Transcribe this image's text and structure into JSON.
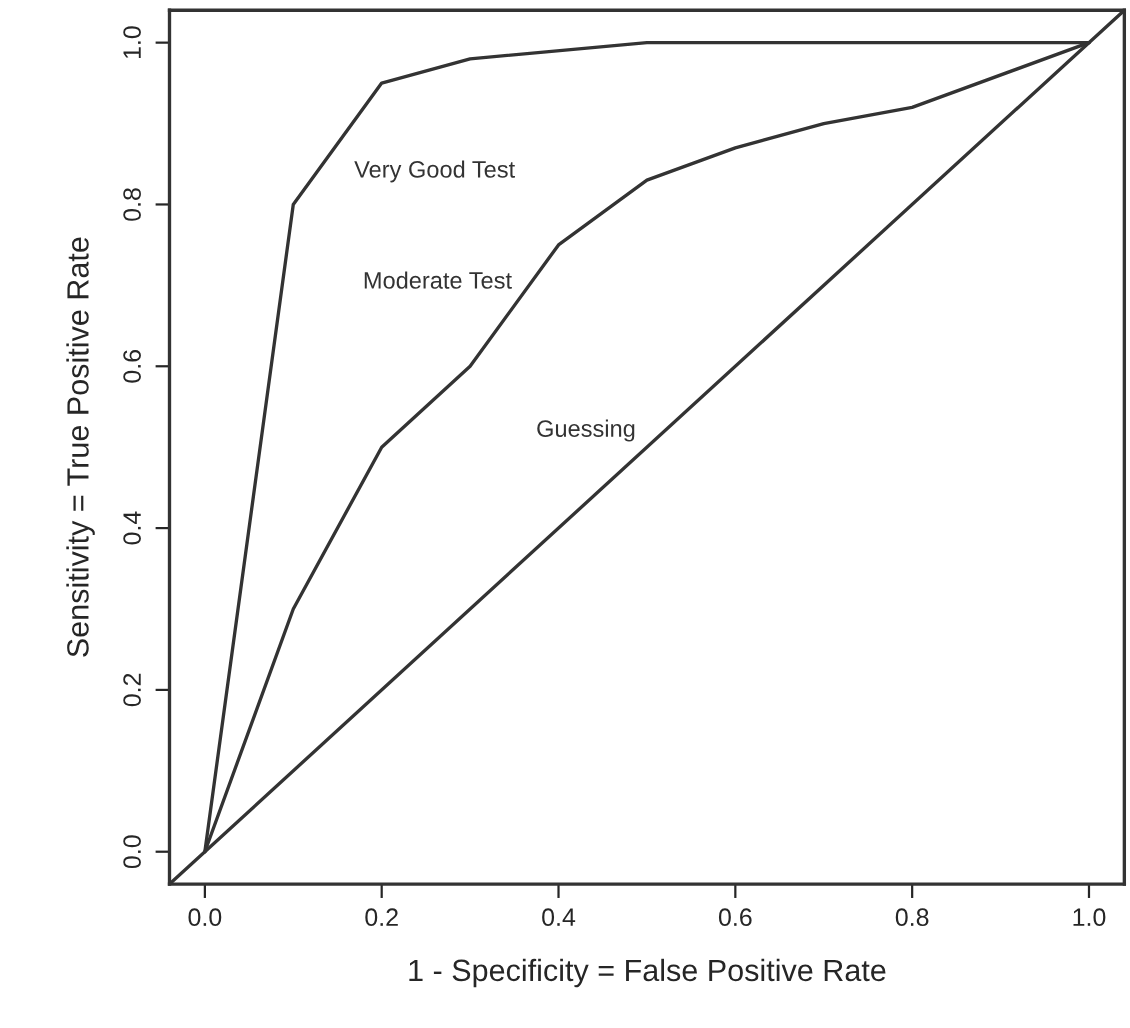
{
  "chart_data": {
    "type": "line",
    "xlabel": "1 - Specificity = False Positive Rate",
    "ylabel": "Sensitivity = True Positive Rate",
    "series": [
      {
        "name": "Very Good Test",
        "x": [
          0,
          0.1,
          0.2,
          0.3,
          0.5,
          1.0
        ],
        "values": [
          0,
          0.8,
          0.95,
          0.98,
          1.0,
          1.0
        ],
        "color": "#333333"
      },
      {
        "name": "Moderate Test",
        "x": [
          0,
          0.1,
          0.2,
          0.3,
          0.4,
          0.5,
          0.6,
          0.7,
          0.8,
          1.0
        ],
        "values": [
          0,
          0.3,
          0.5,
          0.6,
          0.75,
          0.83,
          0.87,
          0.9,
          0.92,
          1.0
        ],
        "color": "#333333"
      },
      {
        "name": "Guessing",
        "x": [
          -0.04,
          1.04
        ],
        "values": [
          -0.04,
          1.04
        ],
        "color": "#333333"
      }
    ],
    "xlim": [
      -0.04,
      1.04
    ],
    "ylim": [
      -0.04,
      1.04
    ],
    "xticks": [
      {
        "value": 0,
        "label": "0.0"
      },
      0.2,
      0.4,
      0.6,
      0.8,
      {
        "value": 1,
        "label": "1.0"
      }
    ],
    "yticks": [
      {
        "value": 0,
        "label": "0.0"
      },
      0.2,
      0.4,
      0.6,
      0.8,
      {
        "value": 1,
        "label": "1.0"
      }
    ],
    "grid": false,
    "legend": false,
    "marker": "none",
    "line_style": "solid"
  }
}
